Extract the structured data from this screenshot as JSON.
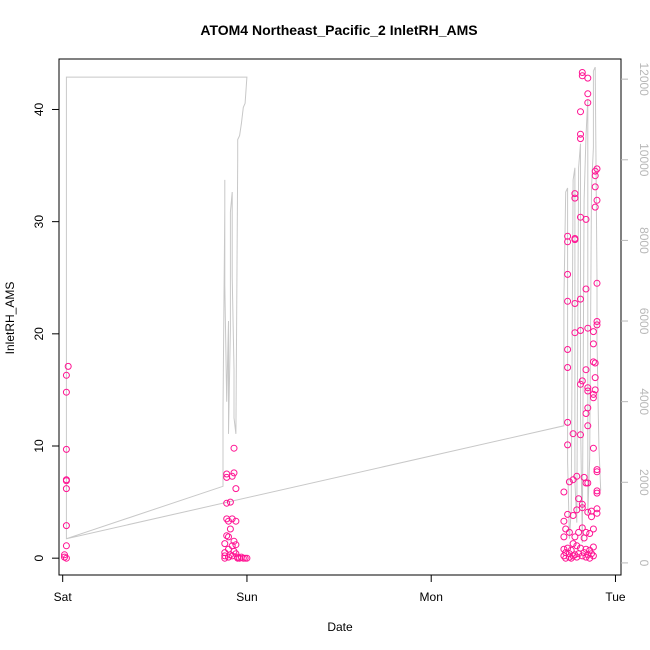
{
  "chart_data": {
    "type": "scatter",
    "title": "ATOM4 Northeast_Pacific_2 InletRH_AMS",
    "xlabel": "Date",
    "ylabel": "InletRH_AMS",
    "x_ticks": [
      "Sat",
      "Sun",
      "Mon",
      "Tue"
    ],
    "x_tick_values": [
      0,
      1,
      2,
      3
    ],
    "xlim": [
      -0.02,
      3.03
    ],
    "y_ticks": [
      0,
      10,
      20,
      30,
      40
    ],
    "ylim": [
      -1.5,
      44.5
    ],
    "y2_ticks": [
      0,
      2000,
      4000,
      6000,
      8000,
      10000,
      12000
    ],
    "y2lim": [
      -300,
      12500
    ],
    "grid": false,
    "series": [
      {
        "kind": "points",
        "color": "#ff1493",
        "marker": "open-circle",
        "axis": "left",
        "points": [
          [
            0.01,
            0.1
          ],
          [
            0.01,
            0.3
          ],
          [
            0.02,
            0.0
          ],
          [
            0.02,
            1.1
          ],
          [
            0.02,
            2.9
          ],
          [
            0.02,
            6.2
          ],
          [
            0.02,
            6.9
          ],
          [
            0.02,
            7.0
          ],
          [
            0.02,
            9.7
          ],
          [
            0.02,
            14.8
          ],
          [
            0.02,
            16.3
          ],
          [
            0.03,
            17.1
          ],
          [
            0.88,
            0.0
          ],
          [
            0.88,
            0.2
          ],
          [
            0.88,
            0.5
          ],
          [
            0.88,
            1.3
          ],
          [
            0.89,
            2.0
          ],
          [
            0.89,
            3.5
          ],
          [
            0.89,
            4.9
          ],
          [
            0.89,
            7.2
          ],
          [
            0.89,
            7.5
          ],
          [
            0.9,
            0.1
          ],
          [
            0.9,
            0.8
          ],
          [
            0.9,
            1.9
          ],
          [
            0.9,
            3.3
          ],
          [
            0.91,
            0.3
          ],
          [
            0.91,
            2.6
          ],
          [
            0.91,
            5.0
          ],
          [
            0.92,
            0.2
          ],
          [
            0.92,
            1.1
          ],
          [
            0.92,
            3.5
          ],
          [
            0.92,
            7.3
          ],
          [
            0.93,
            0.6
          ],
          [
            0.93,
            1.5
          ],
          [
            0.93,
            7.6
          ],
          [
            0.93,
            9.8
          ],
          [
            0.94,
            6.2
          ],
          [
            0.94,
            3.3
          ],
          [
            0.94,
            1.2
          ],
          [
            0.94,
            0.4
          ],
          [
            0.95,
            0.1
          ],
          [
            0.95,
            0.0
          ],
          [
            0.96,
            0.0
          ],
          [
            0.97,
            0.1
          ],
          [
            0.98,
            0.0
          ],
          [
            0.99,
            0.0
          ],
          [
            1.0,
            0.0
          ],
          [
            2.72,
            0.2
          ],
          [
            2.72,
            0.8
          ],
          [
            2.72,
            1.9
          ],
          [
            2.72,
            3.3
          ],
          [
            2.72,
            5.9
          ],
          [
            2.73,
            0.0
          ],
          [
            2.73,
            0.5
          ],
          [
            2.73,
            2.6
          ],
          [
            2.74,
            0.9
          ],
          [
            2.74,
            3.9
          ],
          [
            2.74,
            10.1
          ],
          [
            2.74,
            12.1
          ],
          [
            2.74,
            17.0
          ],
          [
            2.74,
            18.6
          ],
          [
            2.74,
            22.9
          ],
          [
            2.74,
            25.3
          ],
          [
            2.74,
            28.2
          ],
          [
            2.74,
            28.7
          ],
          [
            2.75,
            0.1
          ],
          [
            2.75,
            0.4
          ],
          [
            2.75,
            2.3
          ],
          [
            2.75,
            6.8
          ],
          [
            2.76,
            0.0
          ],
          [
            2.76,
            0.7
          ],
          [
            2.77,
            0.2
          ],
          [
            2.77,
            1.3
          ],
          [
            2.77,
            3.8
          ],
          [
            2.77,
            7.0
          ],
          [
            2.77,
            11.1
          ],
          [
            2.78,
            0.3
          ],
          [
            2.78,
            1.9
          ],
          [
            2.78,
            20.1
          ],
          [
            2.78,
            22.7
          ],
          [
            2.78,
            28.4
          ],
          [
            2.78,
            28.5
          ],
          [
            2.78,
            32.1
          ],
          [
            2.78,
            32.5
          ],
          [
            2.79,
            0.1
          ],
          [
            2.79,
            1.1
          ],
          [
            2.79,
            4.3
          ],
          [
            2.79,
            7.3
          ],
          [
            2.8,
            0.4
          ],
          [
            2.8,
            2.3
          ],
          [
            2.8,
            5.3
          ],
          [
            2.81,
            0.9
          ],
          [
            2.81,
            11.0
          ],
          [
            2.81,
            15.5
          ],
          [
            2.81,
            20.3
          ],
          [
            2.81,
            23.1
          ],
          [
            2.81,
            30.4
          ],
          [
            2.81,
            37.8
          ],
          [
            2.81,
            37.4
          ],
          [
            2.81,
            39.8
          ],
          [
            2.82,
            0.2
          ],
          [
            2.82,
            2.7
          ],
          [
            2.82,
            4.5
          ],
          [
            2.82,
            4.8
          ],
          [
            2.82,
            15.8
          ],
          [
            2.82,
            43.3
          ],
          [
            2.82,
            43.0
          ],
          [
            2.83,
            0.5
          ],
          [
            2.83,
            1.8
          ],
          [
            2.83,
            7.2
          ],
          [
            2.84,
            0.1
          ],
          [
            2.84,
            0.8
          ],
          [
            2.84,
            2.3
          ],
          [
            2.84,
            6.7
          ],
          [
            2.84,
            12.9
          ],
          [
            2.84,
            16.8
          ],
          [
            2.84,
            24.0
          ],
          [
            2.84,
            30.2
          ],
          [
            2.85,
            0.3
          ],
          [
            2.85,
            4.1
          ],
          [
            2.85,
            6.7
          ],
          [
            2.85,
            11.8
          ],
          [
            2.85,
            13.4
          ],
          [
            2.85,
            14.9
          ],
          [
            2.85,
            15.2
          ],
          [
            2.85,
            20.5
          ],
          [
            2.85,
            41.4
          ],
          [
            2.85,
            40.6
          ],
          [
            2.85,
            42.8
          ],
          [
            2.86,
            0.0
          ],
          [
            2.86,
            0.7
          ],
          [
            2.86,
            2.2
          ],
          [
            2.87,
            0.4
          ],
          [
            2.87,
            3.7
          ],
          [
            2.87,
            4.2
          ],
          [
            2.88,
            0.2
          ],
          [
            2.88,
            1.0
          ],
          [
            2.88,
            2.6
          ],
          [
            2.88,
            9.8
          ],
          [
            2.88,
            14.3
          ],
          [
            2.88,
            14.6
          ],
          [
            2.88,
            17.5
          ],
          [
            2.88,
            19.1
          ],
          [
            2.88,
            20.2
          ],
          [
            2.89,
            16.1
          ],
          [
            2.89,
            15.0
          ],
          [
            2.89,
            17.4
          ],
          [
            2.89,
            31.3
          ],
          [
            2.89,
            33.1
          ],
          [
            2.89,
            34.1
          ],
          [
            2.89,
            34.5
          ],
          [
            2.9,
            4.0
          ],
          [
            2.9,
            4.4
          ],
          [
            2.9,
            5.8
          ],
          [
            2.9,
            6.0
          ],
          [
            2.9,
            7.7
          ],
          [
            2.9,
            7.9
          ],
          [
            2.9,
            20.8
          ],
          [
            2.9,
            21.1
          ],
          [
            2.9,
            24.5
          ],
          [
            2.9,
            31.9
          ],
          [
            2.9,
            34.7
          ]
        ]
      },
      {
        "kind": "line",
        "color": "#c8c8c8",
        "axis": "right",
        "points": [
          [
            0.02,
            12000
          ],
          [
            0.02,
            12050
          ],
          [
            0.5,
            12050
          ],
          [
            1.0,
            12050
          ],
          [
            0.99,
            11400
          ],
          [
            0.98,
            11300
          ],
          [
            0.97,
            10900
          ],
          [
            0.96,
            10600
          ],
          [
            0.95,
            10500
          ],
          [
            0.95,
            10000
          ],
          [
            0.94,
            3200
          ],
          [
            0.93,
            3600
          ],
          [
            0.93,
            4800
          ],
          [
            0.92,
            7100
          ],
          [
            0.92,
            9200
          ],
          [
            0.91,
            8700
          ],
          [
            0.91,
            5800
          ],
          [
            0.9,
            3200
          ],
          [
            0.9,
            6000
          ],
          [
            0.89,
            4000
          ],
          [
            0.88,
            6900
          ],
          [
            0.88,
            9500
          ],
          [
            0.88,
            8800
          ],
          [
            0.87,
            3800
          ],
          [
            0.87,
            1900
          ],
          [
            0.02,
            600
          ],
          [
            0.02,
            12000
          ],
          [
            0.02,
            600
          ],
          [
            2.72,
            3400
          ],
          [
            2.72,
            6500
          ],
          [
            2.73,
            9200
          ],
          [
            2.74,
            9300
          ],
          [
            2.74,
            2500
          ],
          [
            2.75,
            600
          ],
          [
            2.76,
            1300
          ],
          [
            2.77,
            9500
          ],
          [
            2.78,
            9800
          ],
          [
            2.78,
            2000
          ],
          [
            2.79,
            1000
          ],
          [
            2.8,
            9800
          ],
          [
            2.81,
            10400
          ],
          [
            2.81,
            3600
          ],
          [
            2.82,
            500
          ],
          [
            2.83,
            9000
          ],
          [
            2.84,
            10600
          ],
          [
            2.85,
            11500
          ],
          [
            2.85,
            1200
          ],
          [
            2.86,
            2600
          ],
          [
            2.87,
            9300
          ],
          [
            2.88,
            10300
          ],
          [
            2.88,
            12200
          ],
          [
            2.89,
            12300
          ],
          [
            2.9,
            7000
          ],
          [
            2.9,
            5500
          ],
          [
            2.91,
            2900
          ],
          [
            2.92,
            1800
          ]
        ]
      }
    ]
  }
}
